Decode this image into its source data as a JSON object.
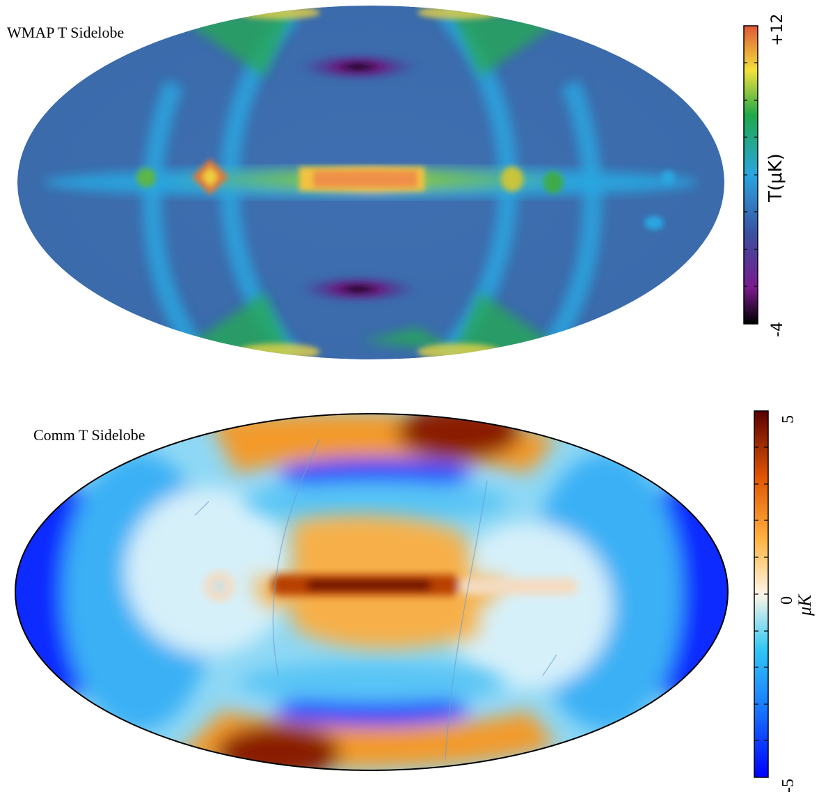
{
  "maps": [
    {
      "title": "WMAP T Sidelobe",
      "colorbar": {
        "max_label": "+12",
        "min_label": "-4",
        "unit_label": "T(μK)",
        "min": -4,
        "max": 12,
        "colors": [
          "#000000",
          "#7a1a8c",
          "#3a4fa0",
          "#2aa6e0",
          "#1fa84a",
          "#f2e23a",
          "#e05838"
        ]
      }
    },
    {
      "title": "Comm T Sidelobe",
      "colorbar": {
        "max_label": "5",
        "mid_label": "0",
        "min_label": "-5",
        "unit_label": "μK",
        "min": -5,
        "max": 5,
        "colors": [
          "#0000ff",
          "#1a7fff",
          "#30c8f5",
          "#fff6e8",
          "#ffb340",
          "#e05500",
          "#5a0000"
        ]
      }
    }
  ]
}
